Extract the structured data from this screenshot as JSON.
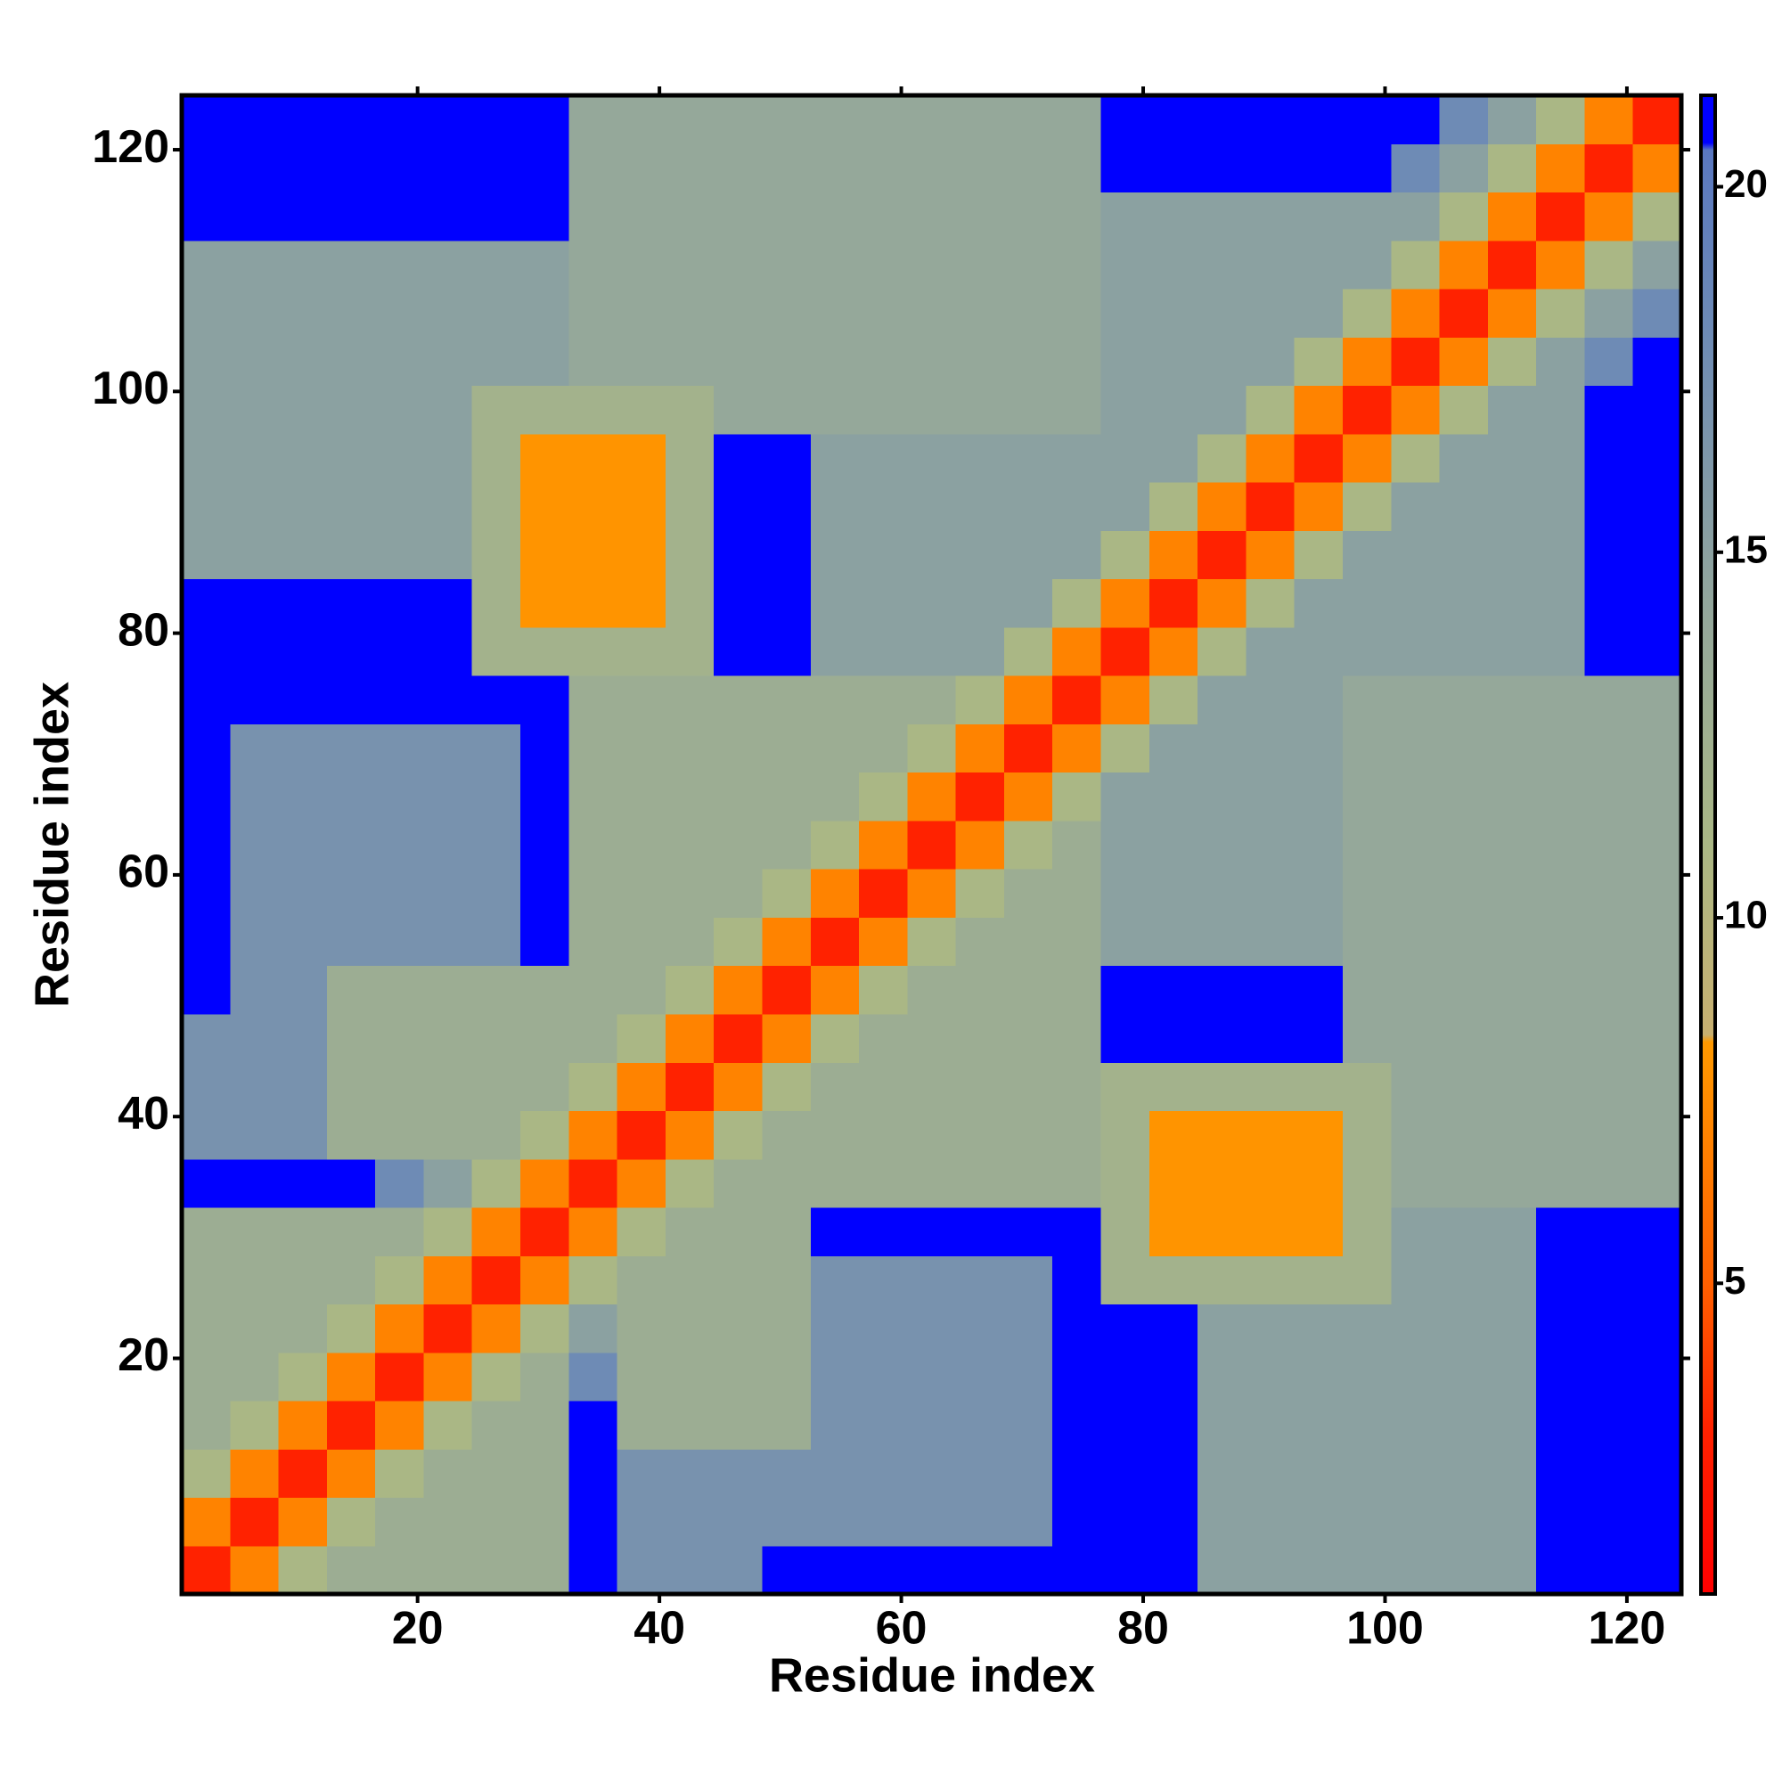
{
  "chart_data": {
    "type": "heatmap",
    "xlabel": "Residue index",
    "ylabel": "Residue index",
    "xlim": [
      0.5,
      124.5
    ],
    "ylim": [
      0.5,
      124.5
    ],
    "xticks": [
      20,
      40,
      60,
      80,
      100,
      120
    ],
    "yticks": [
      20,
      40,
      60,
      80,
      100,
      120
    ],
    "xbins": [
      0.5,
      4.5,
      8.5,
      12.5,
      16.5,
      20.5,
      24.5,
      28.5,
      32.5,
      36.5,
      40.5,
      44.5,
      48.5,
      52.5,
      56.5,
      60.5,
      64.5,
      68.5,
      72.5,
      76.5,
      80.5,
      84.5,
      88.5,
      92.5,
      96.5,
      100.5,
      104.5,
      108.5,
      112.5,
      116.5,
      120.5,
      124.5
    ],
    "ybins": [
      0.5,
      4.5,
      8.5,
      12.5,
      16.5,
      20.5,
      24.5,
      28.5,
      32.5,
      36.5,
      40.5,
      44.5,
      48.5,
      52.5,
      56.5,
      60.5,
      64.5,
      68.5,
      72.5,
      76.5,
      80.5,
      84.5,
      88.5,
      92.5,
      96.5,
      100.5,
      104.5,
      108.5,
      112.5,
      116.5,
      120.5,
      124.5
    ],
    "values": [
      [
        3,
        7,
        11,
        13,
        13,
        13,
        13,
        13,
        21,
        17,
        17,
        17,
        21,
        21,
        21,
        21,
        21,
        21,
        21,
        21,
        21,
        15,
        15,
        15,
        15,
        15,
        15,
        15,
        21,
        21,
        21
      ],
      [
        7,
        3,
        7,
        11,
        13,
        13,
        13,
        13,
        21,
        17,
        17,
        17,
        17,
        17,
        17,
        17,
        17,
        17,
        21,
        21,
        21,
        15,
        15,
        15,
        15,
        15,
        15,
        15,
        21,
        21,
        21
      ],
      [
        11,
        7,
        3,
        7,
        11,
        13,
        13,
        13,
        21,
        17,
        17,
        17,
        17,
        17,
        17,
        17,
        17,
        17,
        21,
        21,
        21,
        15,
        15,
        15,
        15,
        15,
        15,
        15,
        21,
        21,
        21
      ],
      [
        13,
        11,
        7,
        3,
        7,
        11,
        13,
        13,
        21,
        13,
        13,
        13,
        13,
        17,
        17,
        17,
        17,
        17,
        21,
        21,
        21,
        15,
        15,
        15,
        15,
        15,
        15,
        15,
        21,
        21,
        21
      ],
      [
        13,
        13,
        11,
        7,
        3,
        7,
        11,
        13,
        18,
        13,
        13,
        13,
        13,
        17,
        17,
        17,
        17,
        17,
        21,
        21,
        21,
        15,
        15,
        15,
        15,
        15,
        15,
        15,
        21,
        21,
        21
      ],
      [
        13,
        13,
        13,
        11,
        7,
        3,
        7,
        11,
        15,
        13,
        13,
        13,
        13,
        17,
        17,
        17,
        17,
        17,
        21,
        21,
        21,
        15,
        15,
        15,
        15,
        15,
        15,
        15,
        21,
        21,
        21
      ],
      [
        13,
        13,
        13,
        13,
        11,
        7,
        3,
        7,
        11,
        13,
        13,
        13,
        13,
        17,
        17,
        17,
        17,
        17,
        21,
        12,
        12,
        12,
        12,
        12,
        12,
        15,
        15,
        15,
        21,
        21,
        21
      ],
      [
        13,
        13,
        13,
        13,
        13,
        11,
        7,
        3,
        7,
        11,
        13,
        13,
        13,
        21,
        21,
        21,
        21,
        21,
        21,
        12,
        8,
        8,
        8,
        8,
        12,
        15,
        15,
        15,
        21,
        21,
        21
      ],
      [
        21,
        21,
        21,
        21,
        18,
        15,
        11,
        7,
        3,
        7,
        11,
        13,
        13,
        13,
        13,
        13,
        13,
        13,
        13,
        12,
        8,
        8,
        8,
        8,
        12,
        14,
        14,
        14,
        14,
        14,
        14
      ],
      [
        17,
        17,
        17,
        13,
        13,
        13,
        13,
        11,
        7,
        3,
        7,
        11,
        13,
        13,
        13,
        13,
        13,
        13,
        13,
        12,
        8,
        8,
        8,
        8,
        12,
        14,
        14,
        14,
        14,
        14,
        14
      ],
      [
        17,
        17,
        17,
        13,
        13,
        13,
        13,
        13,
        11,
        7,
        3,
        7,
        11,
        13,
        13,
        13,
        13,
        13,
        13,
        12,
        12,
        12,
        12,
        12,
        12,
        14,
        14,
        14,
        14,
        14,
        14
      ],
      [
        17,
        17,
        17,
        13,
        13,
        13,
        13,
        13,
        13,
        11,
        7,
        3,
        7,
        11,
        13,
        13,
        13,
        13,
        13,
        21,
        21,
        21,
        21,
        21,
        14,
        14,
        14,
        14,
        14,
        14,
        14
      ],
      [
        21,
        17,
        17,
        13,
        13,
        13,
        13,
        13,
        13,
        13,
        11,
        7,
        3,
        7,
        11,
        13,
        13,
        13,
        13,
        21,
        21,
        21,
        21,
        21,
        14,
        14,
        14,
        14,
        14,
        14,
        14
      ],
      [
        21,
        17,
        17,
        17,
        17,
        17,
        17,
        21,
        13,
        13,
        13,
        11,
        7,
        3,
        7,
        11,
        13,
        13,
        13,
        15,
        15,
        15,
        15,
        15,
        14,
        14,
        14,
        14,
        14,
        14,
        14
      ],
      [
        21,
        17,
        17,
        17,
        17,
        17,
        17,
        21,
        13,
        13,
        13,
        13,
        11,
        7,
        3,
        7,
        11,
        13,
        13,
        15,
        15,
        15,
        15,
        15,
        14,
        14,
        14,
        14,
        14,
        14,
        14
      ],
      [
        21,
        17,
        17,
        17,
        17,
        17,
        17,
        21,
        13,
        13,
        13,
        13,
        13,
        11,
        7,
        3,
        7,
        11,
        13,
        15,
        15,
        15,
        15,
        15,
        14,
        14,
        14,
        14,
        14,
        14,
        14
      ],
      [
        21,
        17,
        17,
        17,
        17,
        17,
        17,
        21,
        13,
        13,
        13,
        13,
        13,
        13,
        11,
        7,
        3,
        7,
        11,
        15,
        15,
        15,
        15,
        15,
        14,
        14,
        14,
        14,
        14,
        14,
        14
      ],
      [
        21,
        17,
        17,
        17,
        17,
        17,
        17,
        21,
        13,
        13,
        13,
        13,
        13,
        13,
        13,
        11,
        7,
        3,
        7,
        11,
        15,
        15,
        15,
        15,
        14,
        14,
        14,
        14,
        14,
        14,
        14
      ],
      [
        21,
        21,
        21,
        21,
        21,
        21,
        21,
        21,
        13,
        13,
        13,
        13,
        13,
        13,
        13,
        13,
        11,
        7,
        3,
        7,
        11,
        15,
        15,
        15,
        14,
        14,
        14,
        14,
        14,
        14,
        14
      ],
      [
        21,
        21,
        21,
        21,
        21,
        21,
        12,
        12,
        12,
        12,
        12,
        21,
        21,
        15,
        15,
        15,
        15,
        11,
        7,
        3,
        7,
        11,
        15,
        15,
        15,
        15,
        15,
        15,
        15,
        21,
        21
      ],
      [
        21,
        21,
        21,
        21,
        21,
        21,
        12,
        8,
        8,
        8,
        12,
        21,
        21,
        15,
        15,
        15,
        15,
        15,
        11,
        7,
        3,
        7,
        11,
        15,
        15,
        15,
        15,
        15,
        15,
        21,
        21
      ],
      [
        15,
        15,
        15,
        15,
        15,
        15,
        12,
        8,
        8,
        8,
        12,
        21,
        21,
        15,
        15,
        15,
        15,
        15,
        15,
        11,
        7,
        3,
        7,
        11,
        15,
        15,
        15,
        15,
        15,
        21,
        21
      ],
      [
        15,
        15,
        15,
        15,
        15,
        15,
        12,
        8,
        8,
        8,
        12,
        21,
        21,
        15,
        15,
        15,
        15,
        15,
        15,
        15,
        11,
        7,
        3,
        7,
        11,
        15,
        15,
        15,
        15,
        21,
        21
      ],
      [
        15,
        15,
        15,
        15,
        15,
        15,
        12,
        8,
        8,
        8,
        12,
        21,
        21,
        15,
        15,
        15,
        15,
        15,
        15,
        15,
        15,
        11,
        7,
        3,
        7,
        11,
        15,
        15,
        15,
        21,
        21
      ],
      [
        15,
        15,
        15,
        15,
        15,
        15,
        12,
        12,
        12,
        12,
        12,
        14,
        14,
        14,
        14,
        14,
        14,
        14,
        14,
        15,
        15,
        15,
        11,
        7,
        3,
        7,
        11,
        15,
        15,
        21,
        21
      ],
      [
        15,
        15,
        15,
        15,
        15,
        15,
        15,
        15,
        14,
        14,
        14,
        14,
        14,
        14,
        14,
        14,
        14,
        14,
        14,
        15,
        15,
        15,
        15,
        11,
        7,
        3,
        7,
        11,
        15,
        18,
        21
      ],
      [
        15,
        15,
        15,
        15,
        15,
        15,
        15,
        15,
        14,
        14,
        14,
        14,
        14,
        14,
        14,
        14,
        14,
        14,
        14,
        15,
        15,
        15,
        15,
        15,
        11,
        7,
        3,
        7,
        11,
        15,
        18
      ],
      [
        15,
        15,
        15,
        15,
        15,
        15,
        15,
        15,
        14,
        14,
        14,
        14,
        14,
        14,
        14,
        14,
        14,
        14,
        14,
        15,
        15,
        15,
        15,
        15,
        15,
        11,
        7,
        3,
        7,
        11,
        15
      ],
      [
        21,
        21,
        21,
        21,
        21,
        21,
        21,
        21,
        14,
        14,
        14,
        14,
        14,
        14,
        14,
        14,
        14,
        14,
        14,
        15,
        15,
        15,
        15,
        15,
        15,
        15,
        11,
        7,
        3,
        7,
        11
      ],
      [
        21,
        21,
        21,
        21,
        21,
        21,
        21,
        21,
        14,
        14,
        14,
        14,
        14,
        14,
        14,
        14,
        14,
        14,
        14,
        21,
        21,
        21,
        21,
        21,
        21,
        18,
        15,
        11,
        7,
        3,
        7
      ],
      [
        21,
        21,
        21,
        21,
        21,
        21,
        21,
        21,
        14,
        14,
        14,
        14,
        14,
        14,
        14,
        14,
        14,
        14,
        14,
        21,
        21,
        21,
        21,
        21,
        21,
        21,
        18,
        15,
        11,
        7,
        3
      ]
    ],
    "clim": [
      0.75,
      21.25
    ],
    "cticks": [
      5,
      10,
      15,
      20
    ],
    "colorscale": [
      [
        0.75,
        "#ff0000"
      ],
      [
        3,
        "#ff2200"
      ],
      [
        5,
        "#ff6000"
      ],
      [
        8.3,
        "#ff9900"
      ],
      [
        8.4,
        "#c8b070"
      ],
      [
        11,
        "#aab785"
      ],
      [
        14,
        "#95a89a"
      ],
      [
        18,
        "#6e8bb5"
      ],
      [
        20.5,
        "#5a78c0"
      ],
      [
        20.6,
        "#0000ff"
      ],
      [
        21.25,
        "#0000ff"
      ]
    ]
  }
}
